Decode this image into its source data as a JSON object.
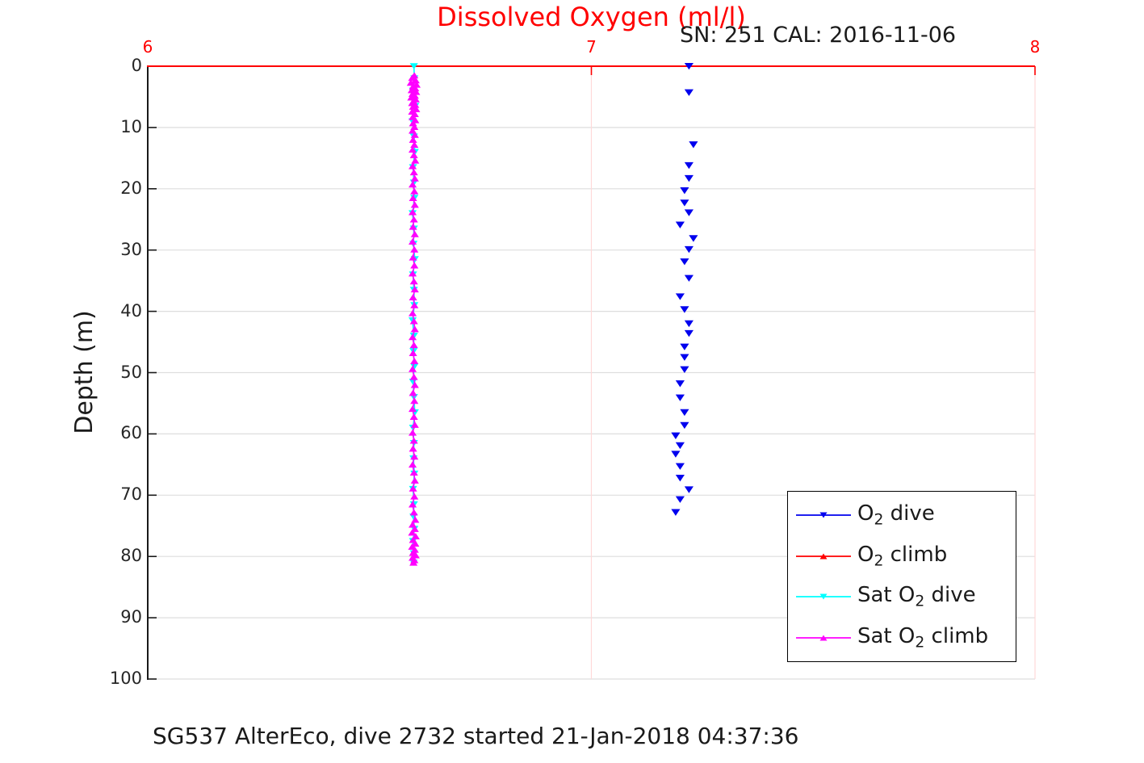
{
  "header": {
    "title": "Dissolved Oxygen (ml/l)",
    "sn_cal": "SN: 251  CAL: 2016-11-06"
  },
  "footer": {
    "caption": "SG537 AlterEco, dive 2732 started 21-Jan-2018 04:37:36"
  },
  "axes": {
    "y": {
      "label": "Depth (m)"
    }
  },
  "colors": {
    "x_axis": "#ff0000",
    "y_axis": "#1a1a1a",
    "grid_h": "#dedede",
    "grid_v": "#ffd9d9",
    "o2_dive": "#0000ee",
    "o2_climb": "#ff0000",
    "sat_dive": "#00ffff",
    "sat_climb": "#ff00ff"
  },
  "chart_data": {
    "type": "scatter",
    "title": "Dissolved Oxygen (ml/l)",
    "xlabel": "",
    "ylabel": "Depth (m)",
    "xlim": [
      6,
      8
    ],
    "ylim": [
      0,
      100
    ],
    "y_inverted": true,
    "x_axis_position": "top",
    "x_ticks": [
      6,
      7,
      8
    ],
    "y_ticks": [
      0,
      10,
      20,
      30,
      40,
      50,
      60,
      70,
      80,
      90,
      100
    ],
    "grid": true,
    "legend_position": "lower-right",
    "series": [
      {
        "id": "sat-o2-dive",
        "name": "Sat O2 dive",
        "color": "#00ffff",
        "marker": "triangle-down",
        "line": true,
        "points": [
          [
            6.6,
            0
          ],
          [
            6.601,
            2.0
          ],
          [
            6.598,
            4.0
          ],
          [
            6.603,
            6.5
          ],
          [
            6.597,
            9.0
          ],
          [
            6.6,
            11.5
          ],
          [
            6.602,
            14.0
          ],
          [
            6.598,
            16.5
          ],
          [
            6.6,
            19.0
          ],
          [
            6.601,
            21.5
          ],
          [
            6.597,
            24.0
          ],
          [
            6.6,
            26.5
          ],
          [
            6.599,
            29.0
          ],
          [
            6.602,
            31.5
          ],
          [
            6.598,
            34.0
          ],
          [
            6.6,
            36.5
          ],
          [
            6.601,
            39.0
          ],
          [
            6.597,
            41.5
          ],
          [
            6.6,
            44.0
          ],
          [
            6.599,
            46.5
          ],
          [
            6.601,
            49.0
          ],
          [
            6.598,
            51.5
          ],
          [
            6.6,
            54.0
          ],
          [
            6.602,
            56.5
          ],
          [
            6.598,
            59.0
          ],
          [
            6.6,
            61.5
          ],
          [
            6.599,
            64.0
          ],
          [
            6.601,
            66.5
          ],
          [
            6.598,
            69.0
          ],
          [
            6.6,
            71.5
          ],
          [
            6.599,
            73.5
          ],
          [
            6.601,
            75.5
          ],
          [
            6.598,
            77.5
          ],
          [
            6.6,
            79.5
          ],
          [
            6.599,
            81.0
          ]
        ]
      },
      {
        "id": "sat-o2-climb",
        "name": "Sat O2 climb",
        "color": "#ff00ff",
        "marker": "triangle-up",
        "line": true,
        "points": [
          [
            6.601,
            1.5
          ],
          [
            6.596,
            1.9
          ],
          [
            6.604,
            2.3
          ],
          [
            6.593,
            2.7
          ],
          [
            6.606,
            3.0
          ],
          [
            6.598,
            3.3
          ],
          [
            6.603,
            3.6
          ],
          [
            6.595,
            3.9
          ],
          [
            6.605,
            4.2
          ],
          [
            6.597,
            4.5
          ],
          [
            6.602,
            4.8
          ],
          [
            6.594,
            5.1
          ],
          [
            6.604,
            5.4
          ],
          [
            6.599,
            5.7
          ],
          [
            6.596,
            6.0
          ],
          [
            6.603,
            6.3
          ],
          [
            6.598,
            6.6
          ],
          [
            6.605,
            7.0
          ],
          [
            6.596,
            7.4
          ],
          [
            6.602,
            7.8
          ],
          [
            6.597,
            8.3
          ],
          [
            6.603,
            8.8
          ],
          [
            6.598,
            9.3
          ],
          [
            6.601,
            9.9
          ],
          [
            6.597,
            10.5
          ],
          [
            6.602,
            11.2
          ],
          [
            6.598,
            12.0
          ],
          [
            6.601,
            12.8
          ],
          [
            6.597,
            13.6
          ],
          [
            6.6,
            14.5
          ],
          [
            6.603,
            15.4
          ],
          [
            6.597,
            16.3
          ],
          [
            6.6,
            17.3
          ],
          [
            6.602,
            18.3
          ],
          [
            6.597,
            19.3
          ],
          [
            6.601,
            20.4
          ],
          [
            6.598,
            21.5
          ],
          [
            6.602,
            22.6
          ],
          [
            6.597,
            23.8
          ],
          [
            6.6,
            25.0
          ],
          [
            6.598,
            26.2
          ],
          [
            6.602,
            27.4
          ],
          [
            6.597,
            28.6
          ],
          [
            6.601,
            29.9
          ],
          [
            6.598,
            31.2
          ],
          [
            6.601,
            32.5
          ],
          [
            6.597,
            33.8
          ],
          [
            6.6,
            35.1
          ],
          [
            6.602,
            36.4
          ],
          [
            6.598,
            37.7
          ],
          [
            6.601,
            39.0
          ],
          [
            6.597,
            40.3
          ],
          [
            6.6,
            41.6
          ],
          [
            6.602,
            42.9
          ],
          [
            6.597,
            44.2
          ],
          [
            6.6,
            45.5
          ],
          [
            6.598,
            46.8
          ],
          [
            6.601,
            48.1
          ],
          [
            6.597,
            49.4
          ],
          [
            6.6,
            50.7
          ],
          [
            6.602,
            52.0
          ],
          [
            6.598,
            53.3
          ],
          [
            6.601,
            54.6
          ],
          [
            6.597,
            55.9
          ],
          [
            6.6,
            57.2
          ],
          [
            6.602,
            58.5
          ],
          [
            6.597,
            59.8
          ],
          [
            6.6,
            61.1
          ],
          [
            6.598,
            62.4
          ],
          [
            6.601,
            63.7
          ],
          [
            6.597,
            65.0
          ],
          [
            6.6,
            66.3
          ],
          [
            6.602,
            67.6
          ],
          [
            6.598,
            68.9
          ],
          [
            6.601,
            70.2
          ],
          [
            6.597,
            71.5
          ],
          [
            6.6,
            72.8
          ],
          [
            6.603,
            74.0
          ],
          [
            6.597,
            74.8
          ],
          [
            6.602,
            75.5
          ],
          [
            6.596,
            76.1
          ],
          [
            6.604,
            76.7
          ],
          [
            6.598,
            77.3
          ],
          [
            6.603,
            77.9
          ],
          [
            6.596,
            78.4
          ],
          [
            6.602,
            78.9
          ],
          [
            6.598,
            79.4
          ],
          [
            6.604,
            79.8
          ],
          [
            6.597,
            80.2
          ],
          [
            6.601,
            80.6
          ],
          [
            6.599,
            81.0
          ]
        ]
      },
      {
        "id": "o2-climb",
        "name": "O2 climb",
        "color": "#ff0000",
        "marker": "triangle-up",
        "line": false,
        "points": []
      },
      {
        "id": "o2-dive",
        "name": "O2 dive",
        "color": "#0000ee",
        "marker": "triangle-down",
        "line": false,
        "points": [
          [
            7.22,
            0
          ],
          [
            7.22,
            4.3
          ],
          [
            7.23,
            12.8
          ],
          [
            7.22,
            16.2
          ],
          [
            7.22,
            18.3
          ],
          [
            7.21,
            20.3
          ],
          [
            7.21,
            22.3
          ],
          [
            7.22,
            23.9
          ],
          [
            7.2,
            25.9
          ],
          [
            7.23,
            28.1
          ],
          [
            7.22,
            29.9
          ],
          [
            7.21,
            31.9
          ],
          [
            7.22,
            34.6
          ],
          [
            7.2,
            37.6
          ],
          [
            7.21,
            39.7
          ],
          [
            7.22,
            42.0
          ],
          [
            7.22,
            43.6
          ],
          [
            7.21,
            45.8
          ],
          [
            7.21,
            47.5
          ],
          [
            7.21,
            49.5
          ],
          [
            7.2,
            51.8
          ],
          [
            7.2,
            54.1
          ],
          [
            7.21,
            56.5
          ],
          [
            7.21,
            58.6
          ],
          [
            7.19,
            60.3
          ],
          [
            7.2,
            61.9
          ],
          [
            7.19,
            63.3
          ],
          [
            7.2,
            65.3
          ],
          [
            7.2,
            67.2
          ],
          [
            7.22,
            69.1
          ],
          [
            7.2,
            70.7
          ],
          [
            7.19,
            72.8
          ]
        ]
      }
    ]
  },
  "legend": {
    "entries": [
      {
        "id": "o2-dive",
        "prefix": "O",
        "sub": "2",
        "suffix": " dive",
        "color": "#0000ee",
        "marker": "down"
      },
      {
        "id": "o2-climb",
        "prefix": "O",
        "sub": "2",
        "suffix": " climb",
        "color": "#ff0000",
        "marker": "up"
      },
      {
        "id": "sat-o2-dive",
        "prefix": "Sat O",
        "sub": "2",
        "suffix": " dive",
        "color": "#00ffff",
        "marker": "down"
      },
      {
        "id": "sat-o2-climb",
        "prefix": "Sat O",
        "sub": "2",
        "suffix": " climb",
        "color": "#ff00ff",
        "marker": "up"
      }
    ]
  }
}
